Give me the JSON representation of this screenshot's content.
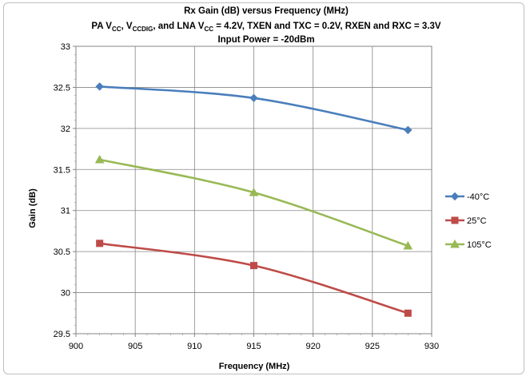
{
  "chart_data": {
    "type": "line",
    "title": {
      "line1": "Rx Gain (dB) versus Frequency (MHz)",
      "line2": [
        {
          "text": "PA V",
          "sub": false
        },
        {
          "text": "CC",
          "sub": true
        },
        {
          "text": ", V",
          "sub": false
        },
        {
          "text": "CCDIG",
          "sub": true
        },
        {
          "text": ", and LNA V",
          "sub": false
        },
        {
          "text": "CC",
          "sub": true
        },
        {
          "text": " = 4.2V, TXEN and TXC = 0.2V, RXEN and RXC = 3.3V",
          "sub": false
        }
      ],
      "line3": "Input Power = -20dBm"
    },
    "xlabel": "Frequency (MHz)",
    "ylabel": "Gain (dB)",
    "xlim": [
      900,
      930
    ],
    "ylim": [
      29.5,
      33
    ],
    "x_ticks": [
      900,
      905,
      910,
      915,
      920,
      925,
      930
    ],
    "y_ticks": [
      29.5,
      30,
      30.5,
      31,
      31.5,
      32,
      32.5,
      33
    ],
    "x_tick_labels": [
      "900",
      "905",
      "910",
      "915",
      "920",
      "925",
      "930"
    ],
    "y_tick_labels": [
      "29.5",
      "30",
      "30.5",
      "31",
      "31.5",
      "32",
      "32.5",
      "33"
    ],
    "grid": true,
    "legend_position": "right",
    "x": [
      902,
      915,
      928
    ],
    "series": [
      {
        "name": "-40°C",
        "values": [
          32.51,
          32.37,
          31.98
        ],
        "color": "#4a7ebb",
        "marker": "diamond"
      },
      {
        "name": "25°C",
        "values": [
          30.6,
          30.33,
          29.75
        ],
        "color": "#be4b48",
        "marker": "square"
      },
      {
        "name": "105°C",
        "values": [
          31.62,
          31.22,
          30.57
        ],
        "color": "#98b954",
        "marker": "triangle"
      }
    ]
  }
}
